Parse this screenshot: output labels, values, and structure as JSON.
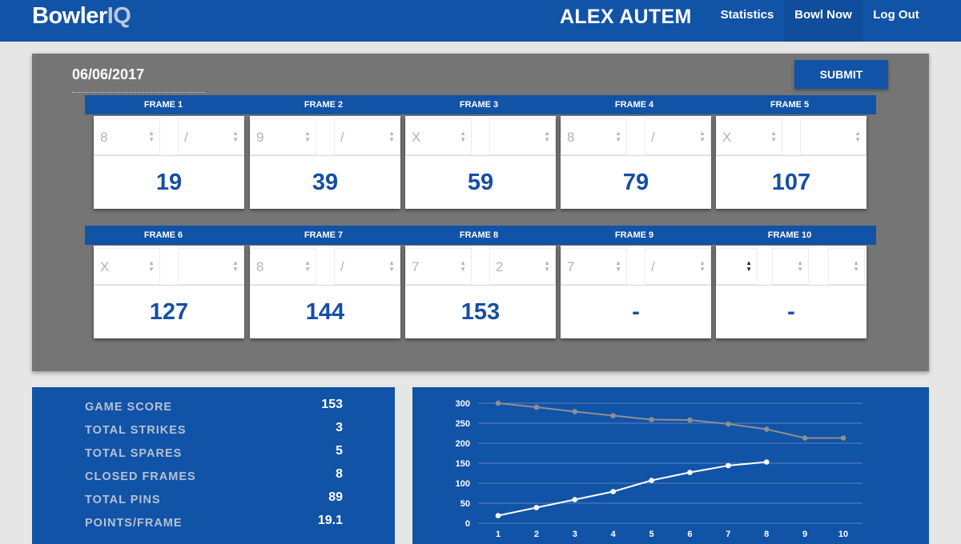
{
  "app": {
    "logo_part1": "Bowler",
    "logo_part2": "IQ",
    "user_name": "ALEX AUTEM",
    "nav": [
      {
        "label": "Statistics",
        "active": false
      },
      {
        "label": "Bowl Now",
        "active": true
      },
      {
        "label": "Log Out",
        "active": false
      }
    ]
  },
  "game": {
    "date": "06/06/2017",
    "submit_label": "SUBMIT",
    "frames": [
      {
        "title": "FRAME 1",
        "throws": [
          "8",
          "/"
        ],
        "score": "19"
      },
      {
        "title": "FRAME 2",
        "throws": [
          "9",
          "/"
        ],
        "score": "39"
      },
      {
        "title": "FRAME 3",
        "throws": [
          "X",
          ""
        ],
        "score": "59"
      },
      {
        "title": "FRAME 4",
        "throws": [
          "8",
          "/"
        ],
        "score": "79"
      },
      {
        "title": "FRAME 5",
        "throws": [
          "X",
          ""
        ],
        "score": "107"
      },
      {
        "title": "FRAME 6",
        "throws": [
          "X",
          ""
        ],
        "score": "127"
      },
      {
        "title": "FRAME 7",
        "throws": [
          "8",
          "/"
        ],
        "score": "144"
      },
      {
        "title": "FRAME 8",
        "throws": [
          "7",
          "2"
        ],
        "score": "153"
      },
      {
        "title": "FRAME 9",
        "throws": [
          "7",
          "/"
        ],
        "score": "-"
      },
      {
        "title": "FRAME 10",
        "throws": [
          "",
          "",
          ""
        ],
        "score": "-"
      }
    ]
  },
  "stats": [
    {
      "label": "GAME SCORE",
      "value": "153"
    },
    {
      "label": "TOTAL STRIKES",
      "value": "3"
    },
    {
      "label": "TOTAL SPARES",
      "value": "5"
    },
    {
      "label": "CLOSED FRAMES",
      "value": "8"
    },
    {
      "label": "TOTAL PINS",
      "value": "89"
    },
    {
      "label": "POINTS/FRAME",
      "value": "19.1"
    }
  ],
  "chart_data": {
    "type": "line",
    "x": [
      1,
      2,
      3,
      4,
      5,
      6,
      7,
      8,
      9,
      10
    ],
    "ylim": [
      0,
      300
    ],
    "y_ticks": [
      0,
      50,
      100,
      150,
      200,
      250,
      300
    ],
    "grid": true,
    "series": [
      {
        "values": [
          300,
          290,
          279,
          269,
          259,
          258,
          248,
          235,
          213,
          213
        ],
        "color": "#8f8f8f"
      },
      {
        "values": [
          19,
          39,
          59,
          79,
          107,
          127,
          144,
          153,
          null,
          null
        ],
        "color": "#ffffff"
      }
    ]
  },
  "colors": {
    "brand": "#1153a6",
    "panel_gray": "#757575",
    "score_text": "#164ea5"
  }
}
